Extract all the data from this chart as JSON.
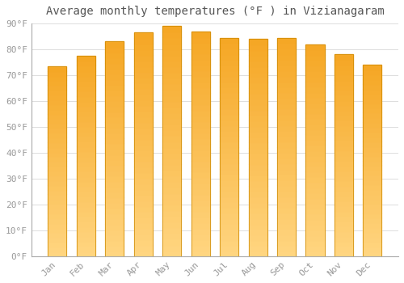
{
  "title": "Average monthly temperatures (°F ) in Vizianagaram",
  "months": [
    "Jan",
    "Feb",
    "Mar",
    "Apr",
    "May",
    "Jun",
    "Jul",
    "Aug",
    "Sep",
    "Oct",
    "Nov",
    "Dec"
  ],
  "values": [
    73.5,
    77.5,
    83.0,
    86.5,
    89.0,
    87.0,
    84.5,
    84.0,
    84.5,
    82.0,
    78.0,
    74.0
  ],
  "bar_color_top": "#F5A623",
  "bar_color_bottom": "#FFD580",
  "bar_edge_color": "#CC8800",
  "ylim": [
    0,
    90
  ],
  "yticks": [
    0,
    10,
    20,
    30,
    40,
    50,
    60,
    70,
    80,
    90
  ],
  "ytick_labels": [
    "0°F",
    "10°F",
    "20°F",
    "30°F",
    "40°F",
    "50°F",
    "60°F",
    "70°F",
    "80°F",
    "90°F"
  ],
  "background_color": "#ffffff",
  "grid_color": "#dddddd",
  "title_fontsize": 10,
  "tick_fontsize": 8,
  "tick_font_color": "#999999",
  "bar_width": 0.65,
  "figsize": [
    5.0,
    3.5
  ],
  "dpi": 100
}
